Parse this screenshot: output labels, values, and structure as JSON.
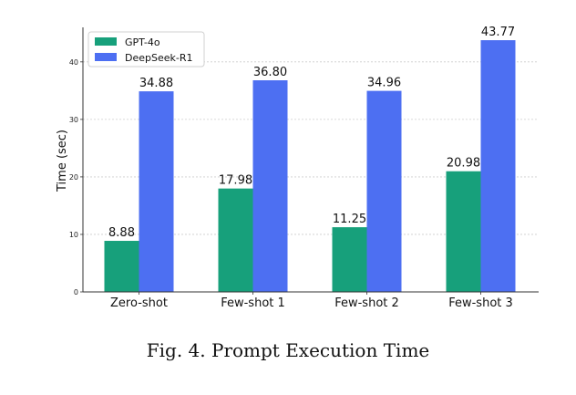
{
  "caption": "Fig. 4.  Prompt Execution Time",
  "chart_data": {
    "type": "bar",
    "title": "",
    "xlabel": "",
    "ylabel": "Time (sec)",
    "categories": [
      "Zero-shot",
      "Few-shot 1",
      "Few-shot 2",
      "Few-shot 3"
    ],
    "series": [
      {
        "name": "GPT-4o",
        "values": [
          8.88,
          17.98,
          11.25,
          20.98
        ],
        "labels": [
          "8.88",
          "17.98",
          "11.25",
          "20.98"
        ],
        "color": "#17a07b"
      },
      {
        "name": "DeepSeek-R1",
        "values": [
          34.88,
          36.8,
          34.96,
          43.77
        ],
        "labels": [
          "34.88",
          "36.80",
          "34.96",
          "43.77"
        ],
        "color": "#4d6ff2"
      }
    ],
    "ylim": [
      0,
      46
    ],
    "yticks": [
      0,
      10,
      20,
      30,
      40
    ],
    "grid": "horizontal-dashed",
    "legend": "top-left"
  }
}
